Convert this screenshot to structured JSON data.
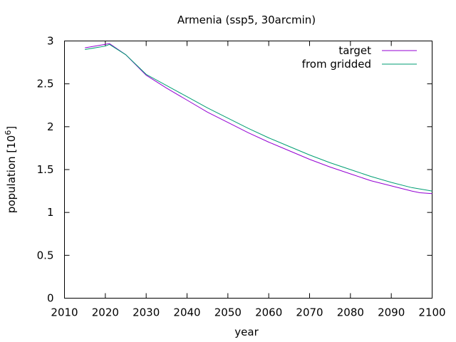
{
  "chart_data": {
    "type": "line",
    "title": "Armenia (ssp5, 30arcmin)",
    "xlabel": "year",
    "ylabel": "population [10^6]",
    "ylabel_base": "population [10",
    "ylabel_exp": "6",
    "ylabel_tail": "]",
    "xlim": [
      2010,
      2100
    ],
    "ylim": [
      0,
      3
    ],
    "xticks": [
      2010,
      2020,
      2030,
      2040,
      2050,
      2060,
      2070,
      2080,
      2090,
      2100
    ],
    "yticks": [
      0,
      0.5,
      1,
      1.5,
      2,
      2.5,
      3
    ],
    "ytick_labels": [
      "0",
      "0.5",
      "1",
      "1.5",
      "2",
      "2.5",
      "3"
    ],
    "grid": false,
    "legend_position": "top-right",
    "series": [
      {
        "name": "target",
        "color": "#9400d3",
        "x": [
          2015,
          2020,
          2021,
          2025,
          2030,
          2035,
          2040,
          2045,
          2050,
          2055,
          2060,
          2065,
          2070,
          2075,
          2080,
          2085,
          2090,
          2095,
          2097,
          2100
        ],
        "y": [
          2.92,
          2.96,
          2.97,
          2.84,
          2.6,
          2.45,
          2.31,
          2.17,
          2.05,
          1.93,
          1.82,
          1.72,
          1.62,
          1.53,
          1.45,
          1.37,
          1.31,
          1.25,
          1.23,
          1.22
        ]
      },
      {
        "name": "from gridded",
        "color": "#009e73",
        "x": [
          2015,
          2020,
          2021,
          2025,
          2030,
          2035,
          2040,
          2045,
          2050,
          2055,
          2060,
          2065,
          2070,
          2075,
          2080,
          2085,
          2090,
          2095,
          2100
        ],
        "y": [
          2.9,
          2.94,
          2.96,
          2.84,
          2.61,
          2.48,
          2.35,
          2.22,
          2.1,
          1.98,
          1.87,
          1.77,
          1.67,
          1.58,
          1.5,
          1.42,
          1.35,
          1.29,
          1.25
        ]
      }
    ]
  }
}
